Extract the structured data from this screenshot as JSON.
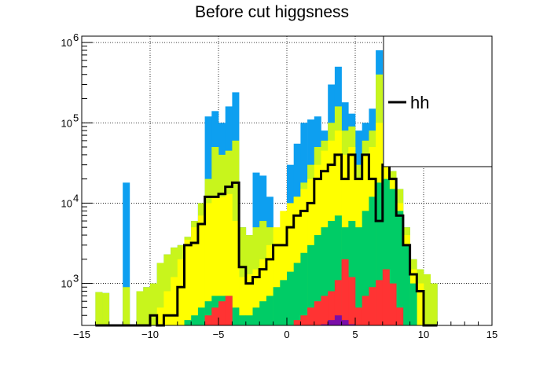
{
  "chart_data": {
    "type": "bar",
    "title": "Before cut higgsness",
    "xlabel": "",
    "ylabel": "",
    "xlim": [
      -15,
      15
    ],
    "ylim": [
      300,
      1200000
    ],
    "yscale": "log",
    "grid": true,
    "legend_position": "top-right",
    "x_ticks": [
      -15,
      -10,
      -5,
      0,
      5,
      10,
      15
    ],
    "x_tick_labels": [
      "−15",
      "−10",
      "−5",
      "0",
      "5",
      "10",
      "15"
    ],
    "y_ticks": [
      1000,
      10000,
      100000,
      1000000
    ],
    "y_tick_base": "10",
    "y_tick_exponents": [
      "3",
      "4",
      "5",
      "6"
    ],
    "bin_edges": [
      -14,
      -13.5,
      -13,
      -12.5,
      -12,
      -11.5,
      -11,
      -10.5,
      -10,
      -9.5,
      -9,
      -8.5,
      -8,
      -7.5,
      -7,
      -6.5,
      -6,
      -5.5,
      -5,
      -4.5,
      -4,
      -3.5,
      -3,
      -2.5,
      -2,
      -1.5,
      -1,
      -0.5,
      0,
      0.5,
      1,
      1.5,
      2,
      2.5,
      3,
      3.5,
      4,
      4.5,
      5,
      5.5,
      6,
      6.5,
      7,
      7.5,
      8,
      8.5,
      9,
      9.5,
      10,
      10.5,
      11
    ],
    "series": [
      {
        "color": "#0d9ff0",
        "values": [
          780,
          760,
          300,
          300,
          18000,
          300,
          800,
          900,
          1000,
          1800,
          2300,
          2800,
          3000,
          3800,
          6000,
          10000,
          120000,
          140000,
          100000,
          160000,
          240000,
          5000,
          4000,
          24000,
          22000,
          12000,
          3000,
          4000,
          30000,
          55000,
          100000,
          110000,
          120000,
          80000,
          300000,
          500000,
          180000,
          130000,
          80000,
          100000,
          150000,
          800000,
          30000,
          25000,
          15000,
          5000,
          2000,
          1500,
          1300,
          1000
        ]
      },
      {
        "color": "#c8f51c",
        "values": [
          780,
          760,
          300,
          300,
          900,
          300,
          800,
          900,
          1000,
          1800,
          2300,
          2800,
          3000,
          3800,
          6000,
          10000,
          20000,
          50000,
          40000,
          45000,
          60000,
          5000,
          4000,
          5000,
          6000,
          5000,
          3000,
          4000,
          8000,
          12000,
          18000,
          30000,
          50000,
          60000,
          100000,
          160000,
          80000,
          90000,
          30000,
          60000,
          80000,
          400000,
          30000,
          25000,
          15000,
          5000,
          2000,
          1500,
          1300,
          1000
        ]
      },
      {
        "color": "#ffff00",
        "values": [
          300,
          300,
          300,
          300,
          300,
          300,
          300,
          300,
          300,
          500,
          800,
          1200,
          2000,
          3500,
          5000,
          7000,
          10000,
          12000,
          12000,
          13000,
          6000,
          1200,
          1300,
          1500,
          2000,
          3000,
          5000,
          8000,
          10000,
          12000,
          15000,
          20000,
          30000,
          45000,
          60000,
          80000,
          40000,
          50000,
          20000,
          40000,
          50000,
          100000,
          30000,
          20000,
          10000,
          4000,
          1500,
          1000,
          300,
          300
        ]
      },
      {
        "color": "#00cc66",
        "values": [
          300,
          300,
          300,
          300,
          300,
          300,
          300,
          300,
          300,
          300,
          300,
          300,
          300,
          350,
          400,
          500,
          600,
          700,
          700,
          700,
          500,
          400,
          400,
          500,
          600,
          700,
          900,
          1100,
          1400,
          1800,
          2400,
          3000,
          4000,
          5000,
          6000,
          7000,
          5000,
          6000,
          5000,
          8000,
          12000,
          18000,
          20000,
          15000,
          8000,
          3000,
          1000,
          300,
          300,
          300
        ]
      },
      {
        "color": "#ff3333",
        "values": [
          300,
          300,
          300,
          300,
          300,
          300,
          300,
          300,
          300,
          300,
          300,
          300,
          300,
          300,
          300,
          300,
          400,
          500,
          600,
          700,
          300,
          300,
          300,
          300,
          300,
          300,
          300,
          300,
          300,
          350,
          400,
          500,
          600,
          700,
          800,
          1100,
          2000,
          1200,
          500,
          700,
          900,
          1100,
          1500,
          1000,
          500,
          300,
          300,
          300,
          300,
          300
        ]
      },
      {
        "color": "#7a0ea8",
        "values": [
          300,
          300,
          300,
          300,
          300,
          300,
          300,
          300,
          300,
          300,
          300,
          300,
          300,
          300,
          300,
          300,
          300,
          300,
          300,
          300,
          300,
          300,
          300,
          300,
          300,
          300,
          300,
          300,
          300,
          300,
          300,
          300,
          300,
          310,
          350,
          400,
          350,
          310,
          300,
          300,
          300,
          300,
          300,
          300,
          300,
          300,
          300,
          300,
          300,
          300
        ]
      },
      {
        "name": "hh",
        "style": "step",
        "color": "#000000",
        "values": [
          300,
          300,
          300,
          300,
          300,
          300,
          300,
          300,
          400,
          300,
          400,
          400,
          900,
          3000,
          3200,
          5500,
          12000,
          12000,
          13000,
          16000,
          18000,
          1600,
          1000,
          1200,
          1500,
          2000,
          3000,
          3000,
          5000,
          7000,
          8000,
          10000,
          20000,
          25000,
          30000,
          40000,
          20000,
          40000,
          20000,
          40000,
          20000,
          6000,
          30000,
          20000,
          7000,
          3000,
          1300,
          800,
          300,
          300
        ]
      }
    ],
    "legend": [
      {
        "label": "hh",
        "color": "#000000"
      }
    ]
  }
}
